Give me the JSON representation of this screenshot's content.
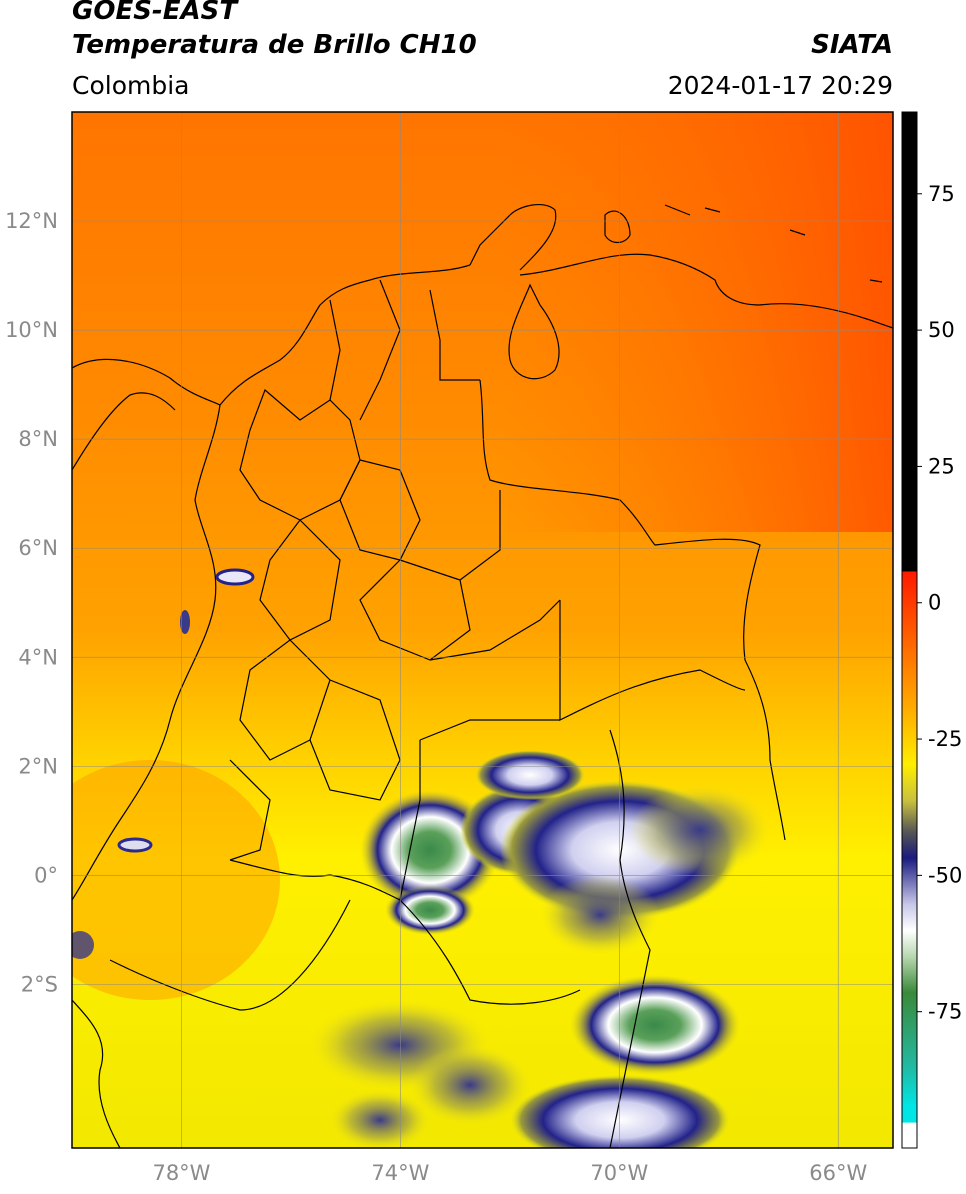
{
  "header": {
    "title_line1": "GOES-EAST",
    "title_line2": "Temperatura de Brillo CH10",
    "region": "Colombia",
    "organization": "SIATA",
    "timestamp": "2024-01-17 20:29"
  },
  "map": {
    "lon_range": [
      -80,
      -65
    ],
    "lat_range": [
      -5,
      14
    ],
    "lon_ticks": [
      {
        "value": -78,
        "label": "78°W"
      },
      {
        "value": -74,
        "label": "74°W"
      },
      {
        "value": -70,
        "label": "70°W"
      },
      {
        "value": -66,
        "label": "66°W"
      }
    ],
    "lat_ticks": [
      {
        "value": 12,
        "label": "12°N"
      },
      {
        "value": 10,
        "label": "10°N"
      },
      {
        "value": 8,
        "label": "8°N"
      },
      {
        "value": 6,
        "label": "6°N"
      },
      {
        "value": 4,
        "label": "4°N"
      },
      {
        "value": 2,
        "label": "2°N"
      },
      {
        "value": 0,
        "label": "0°"
      },
      {
        "value": -2,
        "label": "2°S"
      }
    ],
    "grid": true
  },
  "colorbar": {
    "range": [
      -100,
      90
    ],
    "ticks": [
      {
        "value": 75,
        "label": "75"
      },
      {
        "value": 50,
        "label": "50"
      },
      {
        "value": 25,
        "label": "25"
      },
      {
        "value": 0,
        "label": "0"
      },
      {
        "value": -25,
        "label": "-25"
      },
      {
        "value": -50,
        "label": "-50"
      },
      {
        "value": -75,
        "label": "-75"
      }
    ],
    "colors": {
      "black": "#000000",
      "red": "#ff1a00",
      "orange": "#ff7a00",
      "yellow": "#ffee00",
      "olive": "#8a8a3a",
      "navy": "#1a1a80",
      "lavender": "#c8c8ea",
      "white": "#ffffff",
      "green": "#3a8a3a",
      "teal": "#22b8a0",
      "cyan": "#00e6e6"
    }
  }
}
